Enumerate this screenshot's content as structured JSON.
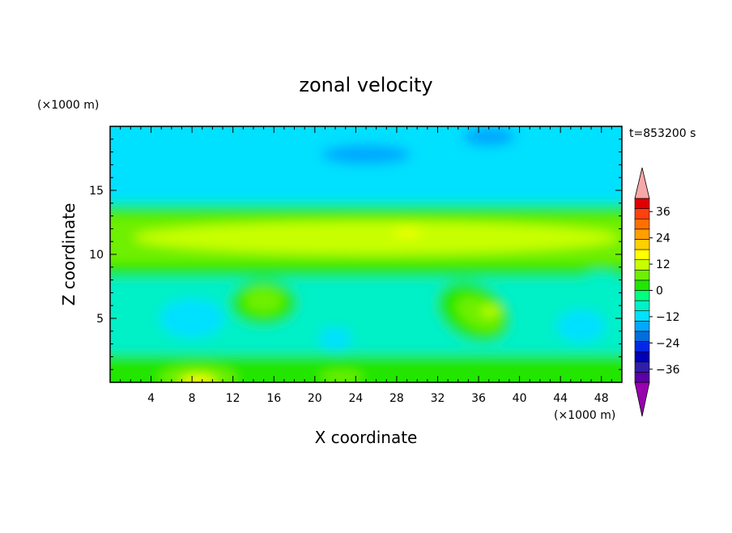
{
  "chart_data": {
    "type": "heatmap",
    "title": "zonal velocity",
    "xlabel": "X coordinate",
    "ylabel": "Z coordinate",
    "x_unit": "(×1000 m)",
    "y_unit": "(×1000 m)",
    "time_label": "t=853200 s",
    "xlim": [
      0,
      50
    ],
    "ylim": [
      0,
      20
    ],
    "x_ticks": [
      4,
      8,
      12,
      16,
      20,
      24,
      28,
      32,
      36,
      40,
      44,
      48
    ],
    "y_ticks": [
      5,
      10,
      15
    ],
    "colorbar": {
      "min": -42,
      "max": 42,
      "step": 6,
      "tick_values": [
        -36,
        -24,
        -12,
        0,
        12,
        24,
        36
      ],
      "tick_labels": [
        "−36",
        "−24",
        "−12",
        "0",
        "12",
        "24",
        "36"
      ],
      "under_color": "#9900b0",
      "over_color": "#f7a7a7",
      "colors": [
        "#5a00a8",
        "#2e1ea8",
        "#0000b4",
        "#0028e6",
        "#006edc",
        "#00a8ff",
        "#00e0ff",
        "#00f0c8",
        "#00ff80",
        "#22e600",
        "#6ef000",
        "#c8ff00",
        "#ffff00",
        "#ffd000",
        "#ffa000",
        "#ff7000",
        "#ff4010",
        "#e00000"
      ]
    },
    "grid": false,
    "legend": "colorbar-right"
  }
}
